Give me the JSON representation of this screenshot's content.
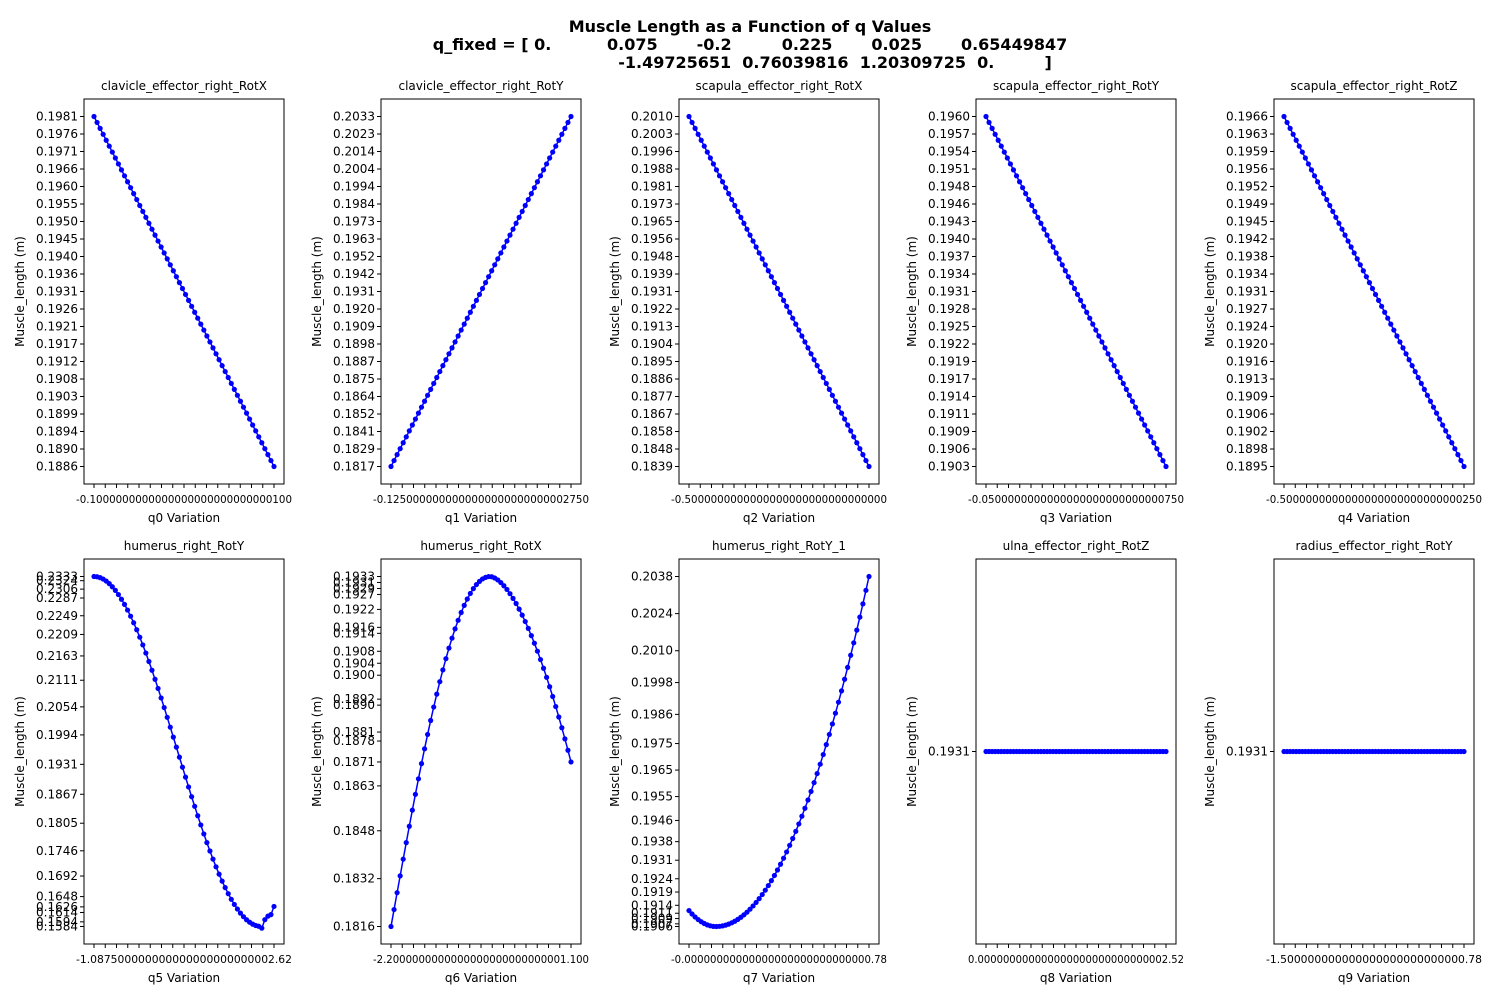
{
  "figure": {
    "title_line1": "Muscle Length as a Function of q Values",
    "title_line2": "q_fixed = [ 0.          0.075       -0.2         0.225       0.025       0.65449847",
    "title_line3": "-1.49725651  0.76039816  1.20309725  0.         ]"
  },
  "chart_data": [
    {
      "type": "scatter",
      "title": "clavicle_effector_right_RotX",
      "xlabel": "q0 Variation",
      "ylabel": "Muscle_length (m)",
      "marker_color": "#0000ff",
      "line": "solid",
      "grid": false,
      "x": [
        -0.1,
        0.1
      ],
      "y": [
        0.1981,
        0.1886
      ],
      "shape": "linear",
      "yticks": [
        "0.1981",
        "0.1976",
        "0.1971",
        "0.1966",
        "0.1960",
        "0.1955",
        "0.1950",
        "0.1945",
        "0.1940",
        "0.1936",
        "0.1931",
        "0.1926",
        "0.1921",
        "0.1917",
        "0.1912",
        "0.1908",
        "0.1903",
        "0.1899",
        "0.1894",
        "0.1890",
        "0.1886"
      ],
      "xtick_label": "-0.1000000000000000000000000000100"
    },
    {
      "type": "scatter",
      "title": "clavicle_effector_right_RotY",
      "xlabel": "q1 Variation",
      "ylabel": "Muscle_length (m)",
      "marker_color": "#0000ff",
      "line": "solid",
      "grid": false,
      "x": [
        -0.125,
        0.275
      ],
      "y": [
        0.1817,
        0.2033
      ],
      "shape": "linear",
      "yticks": [
        "0.2033",
        "0.2023",
        "0.2014",
        "0.2004",
        "0.1994",
        "0.1984",
        "0.1973",
        "0.1963",
        "0.1952",
        "0.1942",
        "0.1931",
        "0.1920",
        "0.1909",
        "0.1898",
        "0.1887",
        "0.1875",
        "0.1864",
        "0.1852",
        "0.1841",
        "0.1829",
        "0.1817"
      ],
      "xtick_label": "-0.1250000000000000000000000002750"
    },
    {
      "type": "scatter",
      "title": "scapula_effector_right_RotX",
      "xlabel": "q2 Variation",
      "ylabel": "Muscle_length (m)",
      "marker_color": "#0000ff",
      "line": "solid",
      "grid": false,
      "x": [
        -0.5,
        0.0
      ],
      "y": [
        0.201,
        0.1839
      ],
      "shape": "linear",
      "yticks": [
        "0.2010",
        "0.2003",
        "0.1996",
        "0.1988",
        "0.1981",
        "0.1973",
        "0.1965",
        "0.1956",
        "0.1948",
        "0.1939",
        "0.1931",
        "0.1922",
        "0.1913",
        "0.1904",
        "0.1895",
        "0.1886",
        "0.1877",
        "0.1867",
        "0.1858",
        "0.1848",
        "0.1839"
      ],
      "xtick_label": "-0.5000000000000000000000000000000"
    },
    {
      "type": "scatter",
      "title": "scapula_effector_right_RotY",
      "xlabel": "q3 Variation",
      "ylabel": "Muscle_length (m)",
      "marker_color": "#0000ff",
      "line": "solid",
      "grid": false,
      "x": [
        -0.05,
        0.75
      ],
      "y": [
        0.196,
        0.1903
      ],
      "shape": "linear",
      "yticks": [
        "0.1960",
        "0.1957",
        "0.1954",
        "0.1951",
        "0.1948",
        "0.1946",
        "0.1943",
        "0.1940",
        "0.1937",
        "0.1934",
        "0.1931",
        "0.1928",
        "0.1925",
        "0.1922",
        "0.1919",
        "0.1917",
        "0.1914",
        "0.1911",
        "0.1909",
        "0.1906",
        "0.1903"
      ],
      "xtick_label": "-0.0500000000000000000000000000750"
    },
    {
      "type": "scatter",
      "title": "scapula_effector_right_RotZ",
      "xlabel": "q4 Variation",
      "ylabel": "Muscle_length (m)",
      "marker_color": "#0000ff",
      "line": "solid",
      "grid": false,
      "x": [
        -0.5,
        0.25
      ],
      "y": [
        0.1966,
        0.1895
      ],
      "shape": "linear",
      "yticks": [
        "0.1966",
        "0.1963",
        "0.1959",
        "0.1956",
        "0.1952",
        "0.1949",
        "0.1945",
        "0.1942",
        "0.1938",
        "0.1934",
        "0.1931",
        "0.1927",
        "0.1924",
        "0.1920",
        "0.1916",
        "0.1913",
        "0.1909",
        "0.1906",
        "0.1902",
        "0.1898",
        "0.1895"
      ],
      "xtick_label": "-0.5000000000000000000000000000250"
    },
    {
      "type": "scatter",
      "title": "humerus_right_RotY",
      "xlabel": "q5 Variation",
      "ylabel": "Muscle_length (m)",
      "marker_color": "#0000ff",
      "line": "solid",
      "grid": false,
      "x": [
        -1.0,
        2.62
      ],
      "y": [
        0.2333,
        0.1584
      ],
      "shape": "cosine_tail",
      "yticks": [
        "0.2333",
        "0.2324",
        "0.2306",
        "0.2287",
        "0.2249",
        "0.2209",
        "0.2163",
        "0.2111",
        "0.2054",
        "0.1994",
        "0.1931",
        "0.1867",
        "0.1805",
        "0.1746",
        "0.1692",
        "0.1648",
        "0.1626",
        "0.1614",
        "0.1594",
        "0.1584"
      ],
      "xtick_label": "-1.087500000000000000000000002.62"
    },
    {
      "type": "scatter",
      "title": "humerus_right_RotX",
      "xlabel": "q6 Variation",
      "ylabel": "Muscle_length (m)",
      "marker_color": "#0000ff",
      "line": "solid",
      "grid": false,
      "x": [
        -2.2,
        1.1
      ],
      "y": [
        0.1816,
        0.1933
      ],
      "shape": "arch",
      "yticks": [
        "0.1933",
        "0.1931",
        "0.1929",
        "0.1927",
        "0.1922",
        "0.1916",
        "0.1914",
        "0.1908",
        "0.1904",
        "0.1900",
        "0.1892",
        "0.1890",
        "0.1881",
        "0.1878",
        "0.1871",
        "0.1863",
        "0.1848",
        "0.1832",
        "0.1816"
      ],
      "xtick_label": "-2.2000000000000000000000000001.100"
    },
    {
      "type": "scatter",
      "title": "humerus_right_RotY_1",
      "xlabel": "q7 Variation",
      "ylabel": "Muscle_length (m)",
      "marker_color": "#0000ff",
      "line": "solid",
      "grid": false,
      "x": [
        -0.0,
        0.78
      ],
      "y": [
        0.1906,
        0.2038
      ],
      "shape": "u_curve",
      "yticks": [
        "0.2038",
        "0.2024",
        "0.2010",
        "0.1998",
        "0.1986",
        "0.1975",
        "0.1965",
        "0.1955",
        "0.1946",
        "0.1938",
        "0.1931",
        "0.1924",
        "0.1919",
        "0.1914",
        "0.1911",
        "0.1909",
        "0.1907",
        "0.1906"
      ],
      "xtick_label": "-0.00000000000000000000000000000.78"
    },
    {
      "type": "scatter",
      "title": "ulna_effector_right_RotZ",
      "xlabel": "q8 Variation",
      "ylabel": "Muscle_length (m)",
      "marker_color": "#0000ff",
      "line": "solid",
      "grid": false,
      "x": [
        0.0,
        2.52
      ],
      "y": [
        0.1931,
        0.1931
      ],
      "shape": "flat",
      "yticks": [
        "0.1931"
      ],
      "xtick_label": "0.000000000000000000000000000002.52"
    },
    {
      "type": "scatter",
      "title": "radius_effector_right_RotY",
      "xlabel": "q9 Variation",
      "ylabel": "Muscle_length (m)",
      "marker_color": "#0000ff",
      "line": "solid",
      "grid": false,
      "x": [
        -1.5,
        0.78
      ],
      "y": [
        0.1931,
        0.1931
      ],
      "shape": "flat",
      "yticks": [
        "0.1931"
      ],
      "xtick_label": "-1.500000000000000000000000000.78"
    }
  ]
}
